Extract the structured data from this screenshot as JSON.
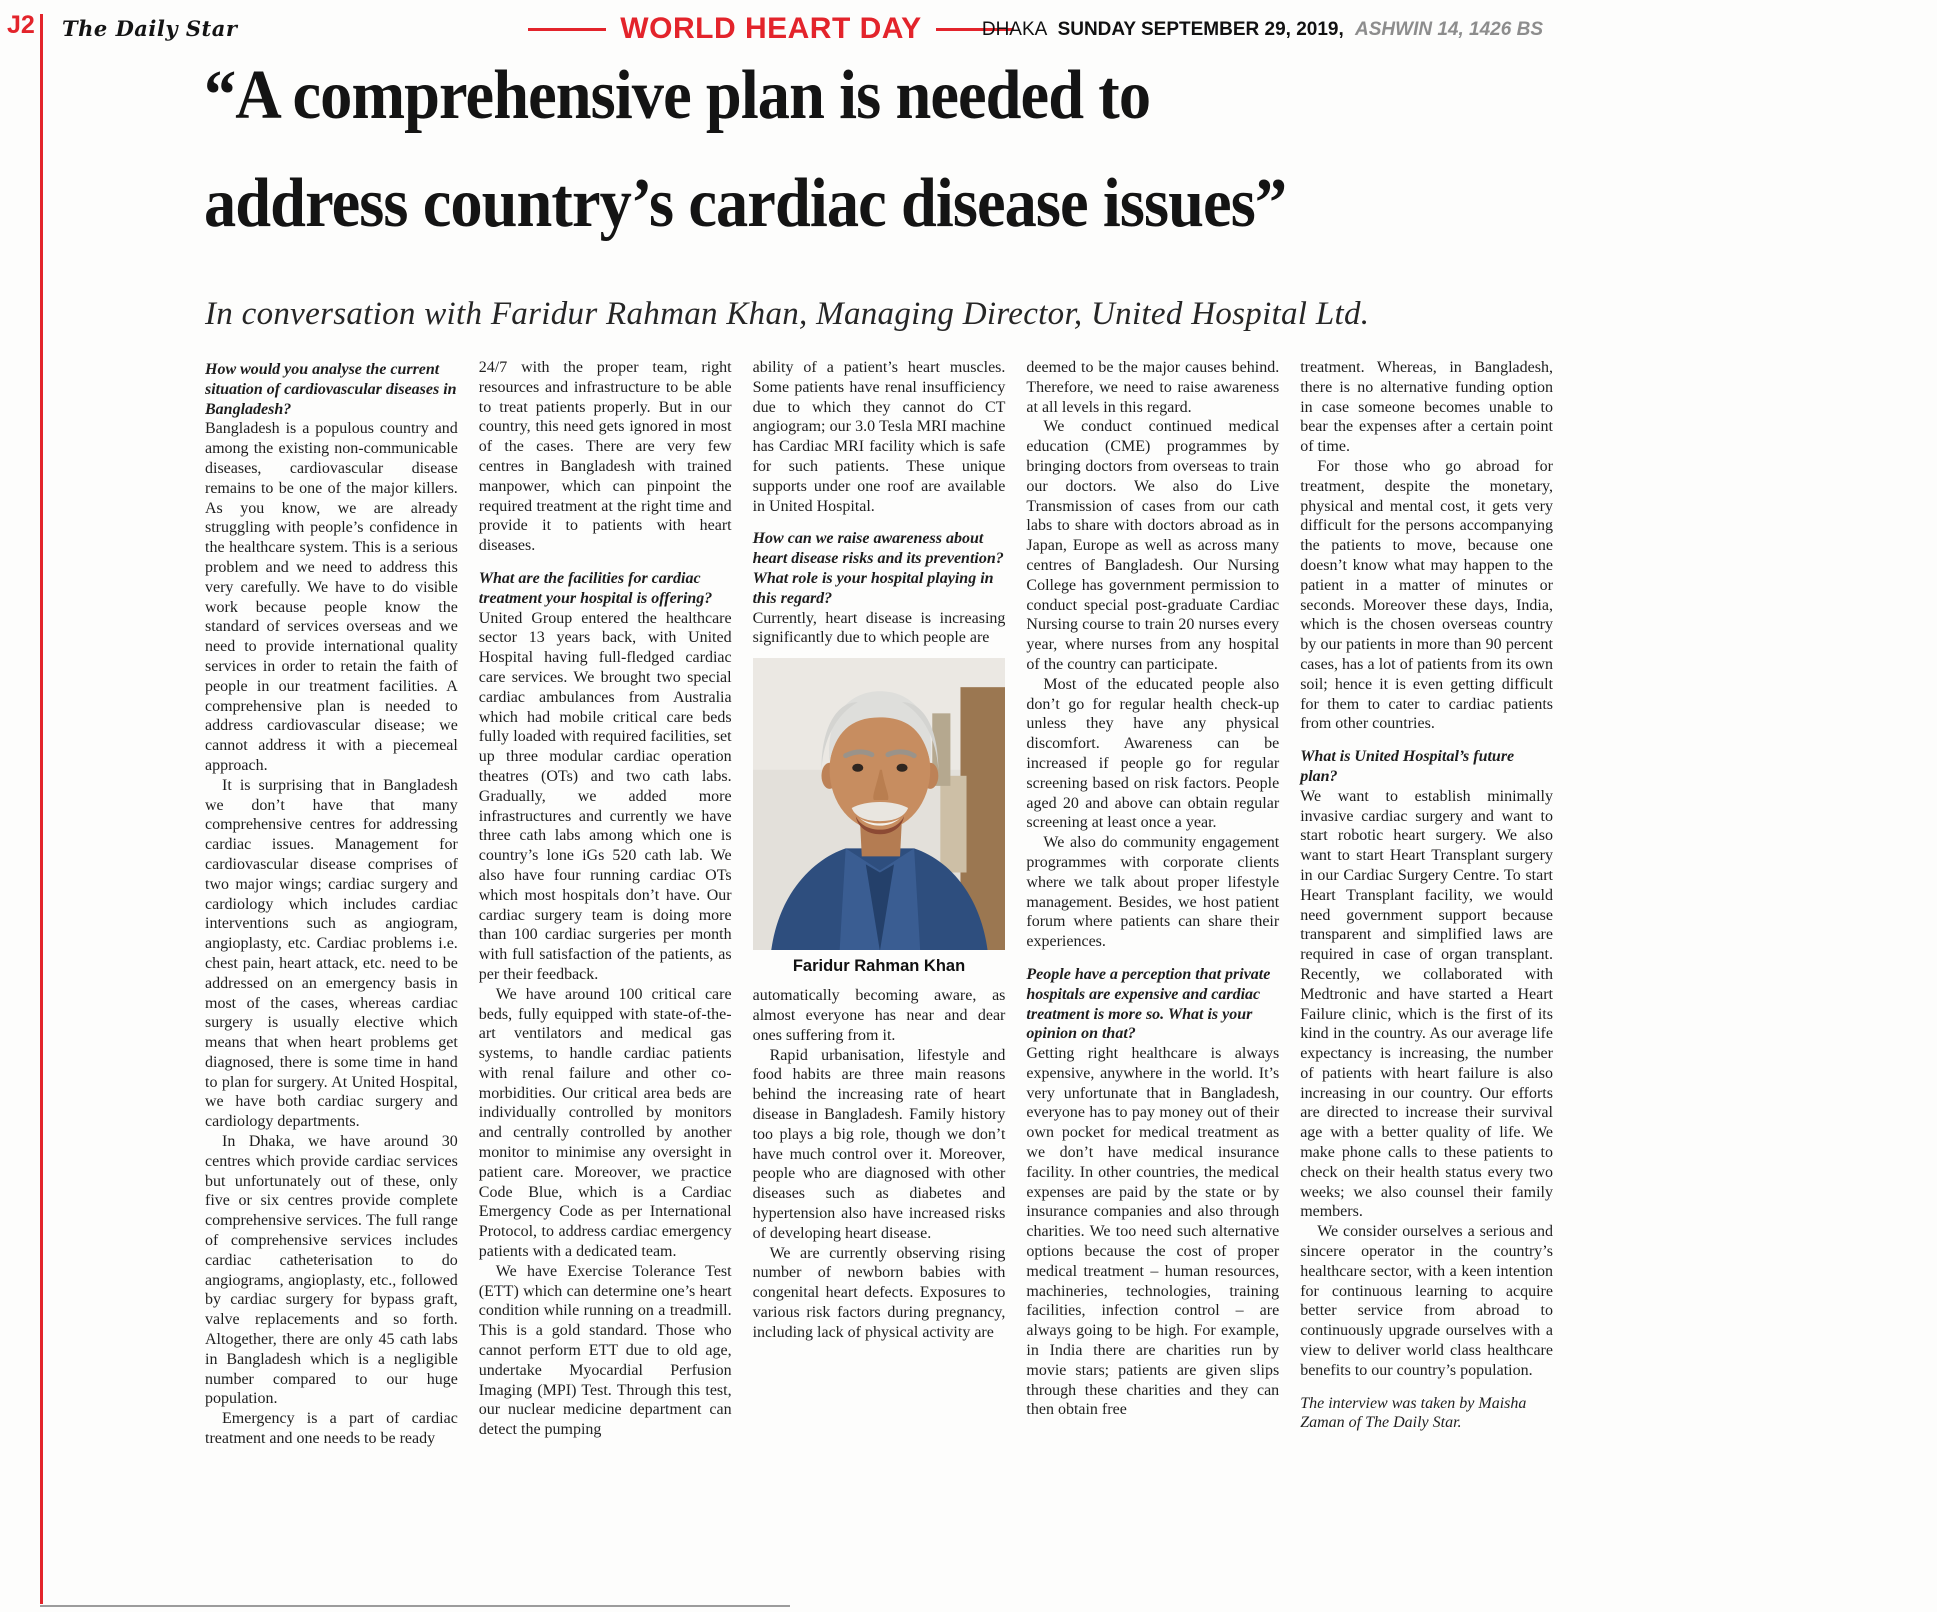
{
  "theme": {
    "accent_red": "#e3242b"
  },
  "header": {
    "page_id": "J2",
    "masthead": "The Daily Star",
    "section_title": "WORLD HEART DAY",
    "dateline": {
      "city": "DHAKA",
      "date": "SUNDAY SEPTEMBER 29, 2019,",
      "bengali": "ASHWIN 14, 1426 BS"
    }
  },
  "article": {
    "headline_line1": "“A comprehensive plan is needed to",
    "headline_line2": "address country’s cardiac disease issues”",
    "subhead": "In conversation with Faridur Rahman Khan, Managing Director, United Hospital Ltd.",
    "photo": {
      "caption": "Faridur Rahman Khan"
    },
    "columns": [
      {
        "blocks": [
          {
            "type": "question",
            "text": "How would you analyse the current situation of cardiovascular diseases in Bangladesh?"
          },
          {
            "type": "para",
            "text": "Bangladesh is a populous country and among the existing non-communicable diseases, cardiovascular disease remains to be one of the major killers. As you know, we are already struggling with people’s confidence in the healthcare system. This is a serious problem and we need to address this very carefully. We have to do visible work because people know the standard of services overseas and we need to provide international quality services in order to retain the faith of people in our treatment facilities. A comprehensive plan is needed to address cardiovascular disease; we cannot address it with a piecemeal approach."
          },
          {
            "type": "para-indent",
            "text": "It is surprising that in Bangladesh we don’t have that many comprehensive centres for addressing cardiac issues. Management for cardiovascular disease comprises of two major wings; cardiac surgery and cardiology which includes cardiac interventions such as angiogram, angioplasty, etc. Cardiac problems i.e. chest pain, heart attack, etc. need to be addressed on an emergency basis in most of the cases, whereas cardiac surgery is usually elective which means that when heart problems get diagnosed, there is some time in hand to plan for surgery. At United Hospital, we have both cardiac surgery and cardiology departments."
          },
          {
            "type": "para-indent",
            "text": "In Dhaka, we have around 30 centres which provide cardiac services but unfortunately out of these, only five or six centres provide complete comprehensive services. The full range of comprehensive services includes cardiac catheterisation to do angiograms, angioplasty, etc., followed by cardiac surgery for bypass graft, valve replacements and so forth. Altogether, there are only 45 cath labs in Bangladesh which is a negligible number compared to our huge population."
          },
          {
            "type": "para-indent",
            "text": "Emergency is a part of cardiac treatment and one needs to be ready"
          }
        ]
      },
      {
        "blocks": [
          {
            "type": "para",
            "text": "24/7 with the proper team, right resources and infrastructure to be able to treat patients properly. But in our country, this need gets ignored in most of the cases. There are very few centres in Bangladesh with trained manpower, which can pinpoint the required treatment at the right time and provide it to patients with heart diseases."
          },
          {
            "type": "question",
            "text": "What are the facilities for cardiac treatment your hospital is offering?"
          },
          {
            "type": "para",
            "text": "United Group entered the healthcare sector 13 years back, with United Hospital having full-fledged cardiac care services. We brought two special cardiac ambulances from Australia which had mobile critical care beds fully loaded with required facilities, set up three modular cardiac operation theatres (OTs) and two cath labs. Gradually, we added more infrastructures and currently we have three cath labs among which one is country’s lone iGs 520 cath lab. We also have four running cardiac OTs which most hospitals don’t have. Our cardiac surgery team is doing more than 100 cardiac surgeries per month with full satisfaction of the patients, as per their feedback."
          },
          {
            "type": "para-indent",
            "text": "We have around 100 critical care beds, fully equipped with state-of-the-art ventilators and medical gas systems, to handle cardiac patients with renal failure and other co-morbidities. Our critical area beds are individually controlled by monitors and centrally controlled by another monitor to minimise any oversight in patient care. Moreover, we practice Code Blue, which is a Cardiac Emergency Code as per International Protocol, to address cardiac emergency patients with a dedicated team."
          },
          {
            "type": "para-indent",
            "text": "We have Exercise Tolerance Test (ETT) which can determine one’s heart condition while running on a treadmill. This is a gold standard. Those who cannot perform ETT due to old age, undertake Myocardial Perfusion Imaging (MPI) Test. Through this test, our nuclear medicine department can detect the pumping"
          }
        ]
      },
      {
        "blocks": [
          {
            "type": "para",
            "text": "ability of a patient’s heart muscles. Some patients have renal insufficiency due to which they cannot do CT angiogram; our 3.0 Tesla MRI machine has Cardiac MRI facility which is safe for such patients. These unique supports under one roof are available in United Hospital."
          },
          {
            "type": "question",
            "text": "How can we raise awareness about heart disease risks and its prevention? What role is your hospital playing in this regard?"
          },
          {
            "type": "para",
            "text": "Currently, heart disease is increasing significantly due to which people are"
          },
          {
            "type": "photo"
          },
          {
            "type": "para",
            "text": "automatically becoming aware, as almost everyone has near and dear ones suffering from it."
          },
          {
            "type": "para-indent",
            "text": "Rapid urbanisation, lifestyle and food habits are three main reasons behind the increasing rate of heart disease in Bangladesh. Family history too plays a big role, though we don’t have much control over it. Moreover, people who are diagnosed with other diseases such as diabetes and hypertension also have increased risks of developing heart disease."
          },
          {
            "type": "para-indent",
            "text": "We are currently observing rising number of newborn babies with congenital heart defects. Exposures to various risk factors during pregnancy, including lack of physical activity are"
          }
        ]
      },
      {
        "blocks": [
          {
            "type": "para",
            "text": "deemed to be the major causes behind. Therefore, we need to raise awareness at all levels in this regard."
          },
          {
            "type": "para-indent",
            "text": "We conduct continued medical education (CME) programmes by bringing doctors from overseas to train our doctors. We also do Live Transmission of cases from our cath labs to share with doctors abroad as in Japan, Europe as well as across many centres of Bangladesh. Our Nursing College has government permission to conduct special post-graduate Cardiac Nursing course to train 20 nurses every year, where nurses from any hospital of the country can participate."
          },
          {
            "type": "para-indent",
            "text": "Most of the educated people also don’t go for regular health check-up unless they have any physical discomfort. Awareness can be increased if people go for regular screening based on risk factors. People aged 20 and above can obtain regular screening at least once a year."
          },
          {
            "type": "para-indent",
            "text": "We also do community engagement programmes with corporate clients where we talk about proper lifestyle management. Besides, we host patient forum where patients can share their experiences."
          },
          {
            "type": "question",
            "text": "People have a perception that private hospitals are expensive and cardiac treatment is more so. What is your opinion on that?"
          },
          {
            "type": "para",
            "text": "Getting right healthcare is always expensive, anywhere in the world. It’s very unfortunate that in Bangladesh, everyone has to pay money out of their own pocket for medical treatment as we don’t have medical insurance facility. In other countries, the medical expenses are paid by the state or by insurance companies and also through charities. We too need such alternative options because the cost of proper medical treatment – human resources, machineries, technologies, training facilities, infection control – are always going to be high. For example, in India there are charities run by movie stars; patients are given slips through these charities and they can then obtain free"
          }
        ]
      },
      {
        "blocks": [
          {
            "type": "para",
            "text": "treatment. Whereas, in Bangladesh, there is no alternative funding option in case someone becomes unable to bear the expenses after a certain point of time."
          },
          {
            "type": "para-indent",
            "text": "For those who go abroad for treatment, despite the monetary, physical and mental cost, it gets very difficult for the persons accompanying the patients to move, because one doesn’t know what may happen to the patient in a matter of minutes or seconds. Moreover these days, India, which is the chosen overseas country by our patients in more than 90 percent cases, has a lot of patients from its own soil; hence it is even getting difficult for them to cater to cardiac patients from other countries."
          },
          {
            "type": "question",
            "text": "What is United Hospital’s future plan?"
          },
          {
            "type": "para",
            "text": "We want to establish minimally invasive cardiac surgery and want to start robotic heart surgery. We also want to start Heart Transplant surgery in our Cardiac Surgery Centre. To start Heart Transplant facility, we would need government support because transparent and simplified laws are required in case of organ transplant. Recently, we collaborated with Medtronic and have started a Heart Failure clinic, which is the first of its kind in the country. As our average life expectancy is increasing, the number of patients with heart failure is also increasing in our country. Our efforts are directed to increase their survival age with a better quality of life. We make phone calls to these patients to check on their health status every two weeks; we also counsel their family members."
          },
          {
            "type": "para-indent",
            "text": "We consider ourselves a serious and sincere operator in the country’s healthcare sector, with a keen intention for continuous learning to acquire better service from abroad to continuously upgrade ourselves with a view to deliver world class healthcare benefits to our country’s population."
          },
          {
            "type": "credit",
            "text": "The interview was taken by Maisha Zaman of The Daily Star."
          }
        ]
      }
    ]
  }
}
